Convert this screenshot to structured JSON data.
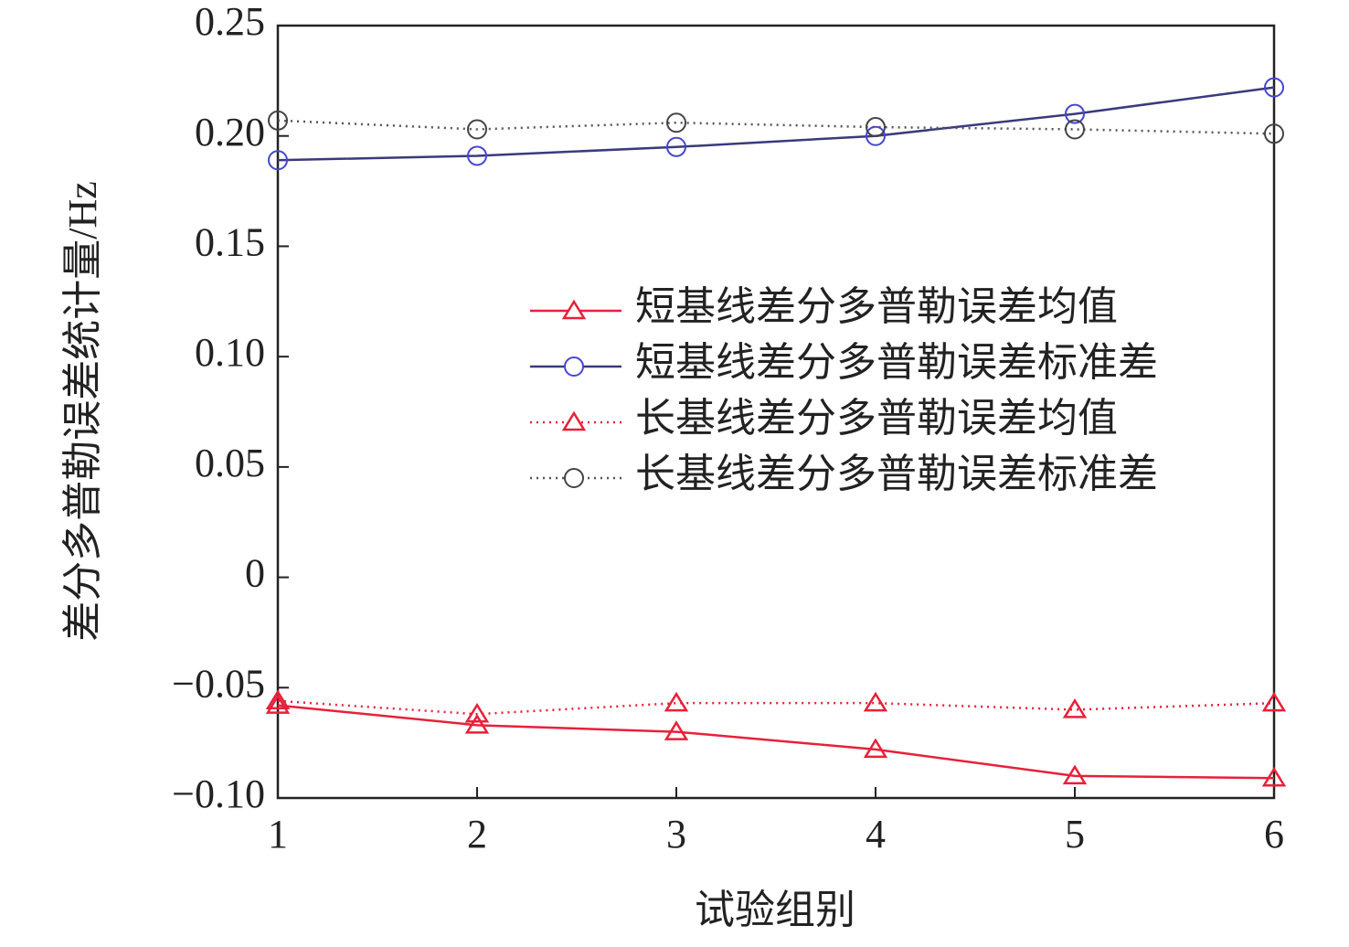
{
  "chart_data": {
    "type": "line",
    "xlabel": "试验组别",
    "ylabel": "差分多普勒误差统计量/Hz",
    "x": [
      1,
      2,
      3,
      4,
      5,
      6
    ],
    "xlim": [
      1,
      6
    ],
    "xticks": [
      1,
      2,
      3,
      4,
      5,
      6
    ],
    "ylim": [
      -0.1,
      0.25
    ],
    "yticks": [
      0.25,
      {
        "value": 0.2,
        "label": "0.20"
      },
      0.15,
      {
        "value": 0.1,
        "label": "0.10"
      },
      0.05,
      0,
      {
        "value": -0.05,
        "label": "−0.05"
      },
      {
        "value": -0.1,
        "label": "−0.10"
      }
    ],
    "legend": "center right",
    "series": [
      {
        "name": "短基线差分多普勒误差均值",
        "color": "#e8203a",
        "marker_color": "#e8203a",
        "marker": "triangle",
        "linestyle": "solid",
        "values": [
          -0.058,
          -0.067,
          -0.07,
          -0.078,
          -0.09,
          -0.091
        ]
      },
      {
        "name": "短基线差分多普勒误差标准差",
        "color": "#3a3a7c",
        "marker_color": "#4646d2",
        "marker": "circle",
        "linestyle": "solid",
        "values": [
          0.189,
          0.191,
          0.195,
          0.2,
          0.21,
          0.222
        ]
      },
      {
        "name": "长基线差分多普勒误差均值",
        "color": "#e8203a",
        "marker_color": "#e8203a",
        "marker": "triangle",
        "linestyle": "dotted",
        "values": [
          -0.056,
          -0.062,
          -0.057,
          -0.057,
          -0.06,
          -0.057
        ]
      },
      {
        "name": "长基线差分多普勒误差标准差",
        "color": "#555555",
        "marker_color": "#444444",
        "marker": "circle",
        "linestyle": "dotted",
        "values": [
          0.207,
          0.203,
          0.206,
          0.204,
          0.203,
          0.201
        ]
      }
    ]
  }
}
